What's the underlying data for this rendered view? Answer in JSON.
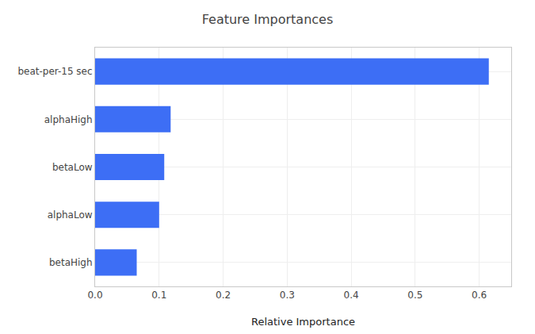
{
  "chart_data": {
    "type": "bar",
    "orientation": "horizontal",
    "title": "Feature Importances",
    "xlabel": "Relative Importance",
    "categories": [
      "betaHigh",
      "alphaLow",
      "betaLow",
      "alphaHigh",
      "beat-per-15 sec"
    ],
    "values": [
      0.065,
      0.1,
      0.108,
      0.118,
      0.615
    ],
    "color": "#3d6ef5",
    "xlim": [
      0,
      0.65
    ],
    "xticks": [
      {
        "value": 0.0,
        "label": "0.0"
      },
      0.1,
      0.2,
      0.3,
      0.4,
      0.5,
      0.6
    ],
    "grid": true
  }
}
